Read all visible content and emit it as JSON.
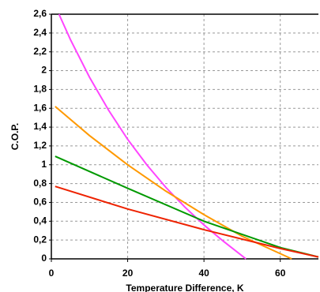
{
  "chart_data": {
    "type": "line",
    "x_label": "Temperature Difference, K",
    "y_label": "C.O.P.",
    "xlim": [
      0,
      70
    ],
    "ylim": [
      0,
      2.6
    ],
    "xticks": [
      0,
      20,
      40,
      60
    ],
    "yticks": [
      0,
      {
        "value": 0.2,
        "label": "0,2"
      },
      {
        "value": 0.4,
        "label": "0,4"
      },
      {
        "value": 0.6,
        "label": "0,6"
      },
      {
        "value": 0.8,
        "label": "0,8"
      },
      1,
      {
        "value": 1.2,
        "label": "1,2"
      },
      {
        "value": 1.4,
        "label": "1,4"
      },
      {
        "value": 1.6,
        "label": "1,6"
      },
      {
        "value": 1.8,
        "label": "1,8"
      },
      2,
      {
        "value": 2.2,
        "label": "2,2"
      },
      {
        "value": 2.4,
        "label": "2,4"
      },
      {
        "value": 2.6,
        "label": "2,6"
      }
    ],
    "grid": true,
    "series": [
      {
        "color": "#ff44ff",
        "x": [
          2,
          5,
          10,
          15,
          20,
          25,
          30,
          35,
          40,
          45,
          51
        ],
        "values": [
          2.6,
          2.33,
          1.93,
          1.58,
          1.27,
          1.0,
          0.76,
          0.55,
          0.36,
          0.19,
          0
        ]
      },
      {
        "color": "#ff9900",
        "x": [
          1,
          10,
          20,
          30,
          40,
          50,
          63
        ],
        "values": [
          1.62,
          1.31,
          1.0,
          0.72,
          0.47,
          0.24,
          0
        ]
      },
      {
        "color": "#009900",
        "x": [
          1,
          20,
          40,
          60,
          70
        ],
        "values": [
          1.09,
          0.75,
          0.4,
          0.12,
          0.02
        ]
      },
      {
        "color": "#ee2200",
        "x": [
          1,
          20,
          40,
          60,
          70
        ],
        "values": [
          0.77,
          0.53,
          0.31,
          0.11,
          0.02
        ]
      }
    ]
  }
}
